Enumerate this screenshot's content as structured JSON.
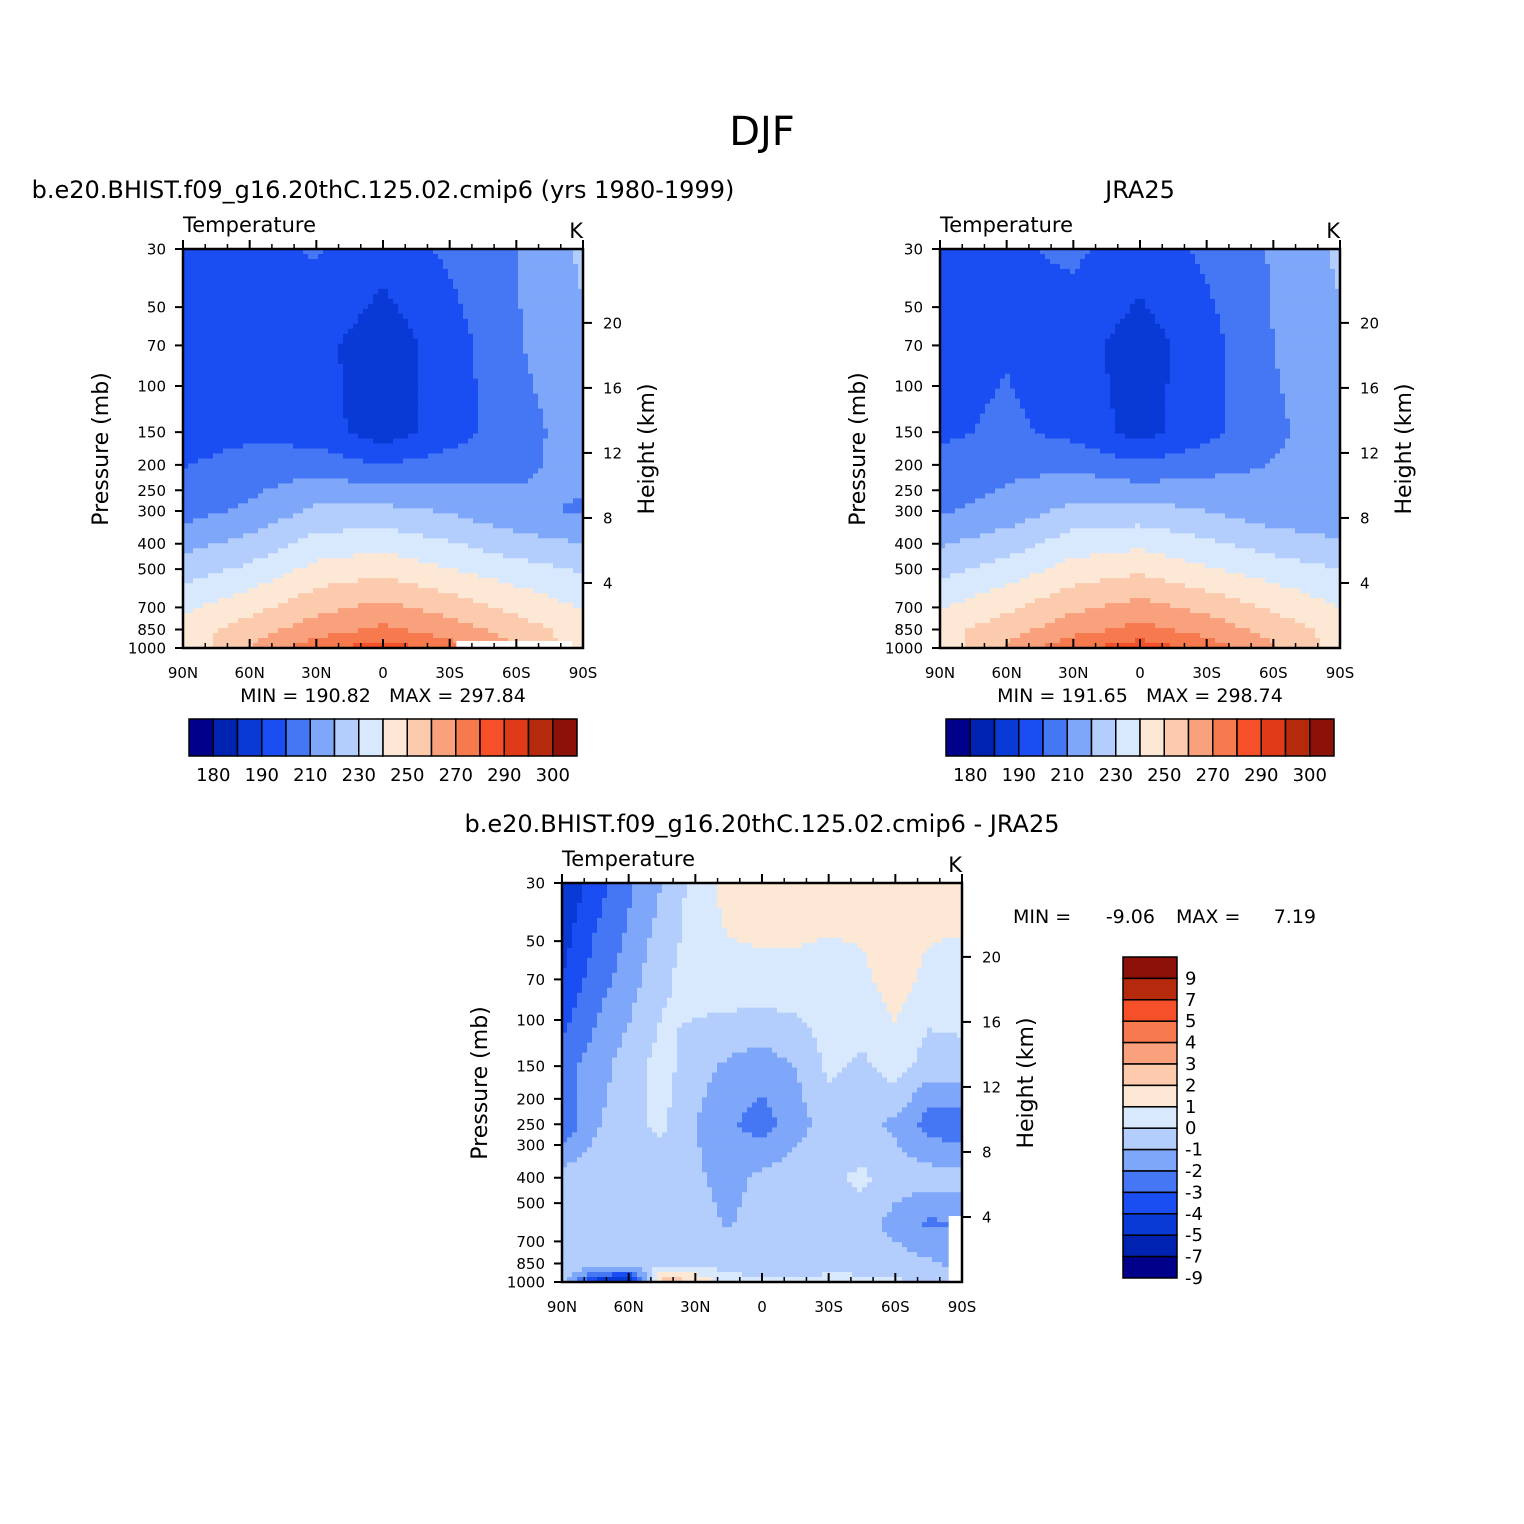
{
  "figure": {
    "title": "DJF"
  },
  "colors": {
    "abs_fill": [
      "#00008b",
      "#0022b0",
      "#0a3ad6",
      "#1a4df2",
      "#4577f5",
      "#7ea7fa",
      "#b3cefc",
      "#d8e8fd",
      "#fde8d6",
      "#fccaad",
      "#f9a07c",
      "#f77a4e",
      "#f5502a",
      "#e03a18",
      "#b52a0c",
      "#8c1108"
    ],
    "diff_fill": [
      "#00008b",
      "#0022b0",
      "#0a3ad6",
      "#1a4df2",
      "#4577f5",
      "#7ea7fa",
      "#b3cefc",
      "#d8e8fd",
      "#fde8d6",
      "#fccaad",
      "#f9a07c",
      "#f77a4e",
      "#f5502a",
      "#b52a0c",
      "#8c1108"
    ],
    "missing": "#ffffff"
  },
  "panels": {
    "model": {
      "title": "b.e20.BHIST.f09_g16.20thC.125.02.cmip6 (yrs 1980-1999)",
      "left_label": "Temperature",
      "units": "K",
      "y_title": "Pressure (mb)",
      "y2_title": "Height (km)",
      "stats": "MIN = 190.82   MAX = 297.84"
    },
    "obs": {
      "title": "JRA25",
      "left_label": "Temperature",
      "units": "K",
      "y_title": "Pressure (mb)",
      "y2_title": "Height (km)",
      "stats": "MIN = 191.65   MAX = 298.74"
    },
    "diff": {
      "title": "b.e20.BHIST.f09_g16.20thC.125.02.cmip6 - JRA25",
      "left_label": "Temperature",
      "units": "K",
      "y_title": "Pressure (mb)",
      "y2_title": "Height (km)",
      "stats_min_label": "MIN =",
      "stats_min": "-9.06",
      "stats_max_label": "MAX =",
      "stats_max": "7.19"
    }
  },
  "chart_data": [
    {
      "type": "heatmap",
      "name": "model",
      "title": "b.e20.BHIST.f09_g16.20thC.125.02.cmip6 (yrs 1980-1999)",
      "xlabel": "",
      "ylabel": "Pressure (mb)",
      "y2label": "Height (km)",
      "x_ticks": [
        "90N",
        "60N",
        "30N",
        "0",
        "30S",
        "60S",
        "90S"
      ],
      "x_tick_values": [
        90,
        60,
        30,
        0,
        -30,
        -60,
        -90
      ],
      "y_ticks": [
        30,
        50,
        70,
        100,
        150,
        200,
        250,
        300,
        400,
        500,
        700,
        850,
        1000
      ],
      "y2_ticks": [
        20,
        16,
        12,
        8,
        4
      ],
      "xlim": [
        90,
        -90
      ],
      "ylim": [
        1000,
        30
      ],
      "min": 190.82,
      "max": 297.84,
      "levels": [
        180,
        190,
        200,
        210,
        220,
        230,
        240,
        250,
        260,
        270,
        280,
        290,
        295,
        300
      ],
      "colorbar_labels": [
        "180",
        "190",
        "210",
        "230",
        "250",
        "270",
        "290",
        "300"
      ],
      "lat": [
        90,
        60,
        30,
        0,
        -30,
        -60,
        -90
      ],
      "plev": [
        30,
        70,
        150,
        300,
        500,
        850,
        1000
      ],
      "values": [
        [
          205,
          207,
          211,
          204,
          212,
          220,
          232
        ],
        [
          204,
          207,
          203,
          194,
          205,
          219,
          228
        ],
        [
          205,
          208,
          205,
          194,
          205,
          216,
          225
        ],
        [
          216,
          222,
          232,
          233,
          229,
          222,
          219
        ],
        [
          235,
          242,
          253,
          257,
          250,
          244,
          239
        ],
        [
          255,
          265,
          275,
          282,
          275,
          265,
          255
        ],
        [
          252,
          270,
          287,
          295,
          285,
          270,
          255
        ]
      ]
    },
    {
      "type": "heatmap",
      "name": "obs",
      "title": "JRA25",
      "xlabel": "",
      "ylabel": "Pressure (mb)",
      "y2label": "Height (km)",
      "x_ticks": [
        "90N",
        "60N",
        "30N",
        "0",
        "30S",
        "60S",
        "90S"
      ],
      "x_tick_values": [
        90,
        60,
        30,
        0,
        -30,
        -60,
        -90
      ],
      "y_ticks": [
        30,
        50,
        70,
        100,
        150,
        200,
        250,
        300,
        400,
        500,
        700,
        850,
        1000
      ],
      "y2_ticks": [
        20,
        16,
        12,
        8,
        4
      ],
      "xlim": [
        90,
        -90
      ],
      "ylim": [
        1000,
        30
      ],
      "min": 191.65,
      "max": 298.74,
      "levels": [
        180,
        190,
        200,
        210,
        220,
        230,
        240,
        250,
        260,
        270,
        280,
        290,
        295,
        300
      ],
      "colorbar_labels": [
        "180",
        "190",
        "210",
        "230",
        "250",
        "270",
        "290",
        "300"
      ],
      "lat": [
        90,
        60,
        30,
        0,
        -30,
        -60,
        -90
      ],
      "plev": [
        30,
        70,
        150,
        300,
        500,
        850,
        1000
      ],
      "values": [
        [
          206,
          208,
          212,
          205,
          212,
          221,
          232
        ],
        [
          206,
          209,
          204,
          195,
          206,
          220,
          228
        ],
        [
          208,
          212,
          207,
          196,
          207,
          218,
          226
        ],
        [
          219,
          224,
          233,
          234,
          230,
          224,
          221
        ],
        [
          237,
          244,
          254,
          258,
          251,
          245,
          240
        ],
        [
          256,
          266,
          276,
          283,
          276,
          266,
          256
        ],
        [
          254,
          271,
          288,
          296,
          286,
          271,
          256
        ]
      ]
    },
    {
      "type": "heatmap",
      "name": "difference",
      "title": "b.e20.BHIST.f09_g16.20thC.125.02.cmip6 - JRA25",
      "xlabel": "",
      "ylabel": "Pressure (mb)",
      "y2label": "Height (km)",
      "x_ticks": [
        "90N",
        "60N",
        "30N",
        "0",
        "30S",
        "60S",
        "90S"
      ],
      "x_tick_values": [
        90,
        60,
        30,
        0,
        -30,
        -60,
        -90
      ],
      "y_ticks": [
        30,
        50,
        70,
        100,
        150,
        200,
        250,
        300,
        400,
        500,
        700,
        850,
        1000
      ],
      "y2_ticks": [
        20,
        16,
        12,
        8,
        4
      ],
      "xlim": [
        90,
        -90
      ],
      "ylim": [
        1000,
        30
      ],
      "min": -9.06,
      "max": 7.19,
      "levels": [
        -9,
        -7,
        -5,
        -4,
        -3,
        -2,
        -1,
        0,
        1,
        2,
        3,
        4,
        5,
        7,
        9
      ],
      "colorbar_labels": [
        "9",
        "7",
        "5",
        "4",
        "3",
        "2",
        "1",
        "0",
        "-1",
        "-2",
        "-3",
        "-4",
        "-5",
        "-7",
        "-9"
      ],
      "lat": [
        90,
        75,
        60,
        45,
        30,
        15,
        0,
        -15,
        -30,
        -45,
        -60,
        -75,
        -90
      ],
      "plev": [
        30,
        70,
        150,
        250,
        400,
        600,
        850,
        1000
      ],
      "values": [
        [
          -6.0,
          -4.5,
          -3.2,
          -2.0,
          -0.6,
          0.4,
          0.6,
          0.6,
          0.5,
          0.4,
          0.3,
          0.6,
          0.7
        ],
        [
          -5.0,
          -3.5,
          -2.5,
          -1.2,
          -0.5,
          -0.3,
          -0.3,
          -0.3,
          -0.4,
          -0.2,
          0.5,
          -0.3,
          -0.6
        ],
        [
          -3.5,
          -2.5,
          -1.5,
          -0.6,
          -1.6,
          -2.2,
          -2.5,
          -2.0,
          -0.8,
          -1.2,
          -0.5,
          -1.5,
          -1.2
        ],
        [
          -3.8,
          -2.2,
          -1.2,
          -0.8,
          -2.0,
          -2.8,
          -3.5,
          -2.5,
          -1.5,
          -1.8,
          -2.2,
          -3.5,
          -3.8
        ],
        [
          -1.6,
          -1.3,
          -1.4,
          -1.6,
          -1.8,
          -2.4,
          -1.7,
          -1.4,
          -1.2,
          -0.8,
          -1.5,
          -1.5,
          -1.6
        ],
        [
          -1.4,
          -1.2,
          -1.3,
          -1.2,
          -1.6,
          -2.1,
          -1.5,
          -1.3,
          -1.2,
          -1.5,
          -2.4,
          -3.2,
          -3.0
        ],
        [
          -1.2,
          -1.1,
          -1.2,
          -1.3,
          -1.5,
          -1.4,
          -1.4,
          -1.9,
          -1.3,
          -1.2,
          -1.5,
          -1.8,
          -2.5
        ],
        [
          -1.2,
          -5.5,
          -6.5,
          1.8,
          1.0,
          -0.6,
          -0.9,
          -0.8,
          -0.7,
          -0.9,
          -0.9,
          -1.0,
          -1.0
        ]
      ]
    }
  ]
}
